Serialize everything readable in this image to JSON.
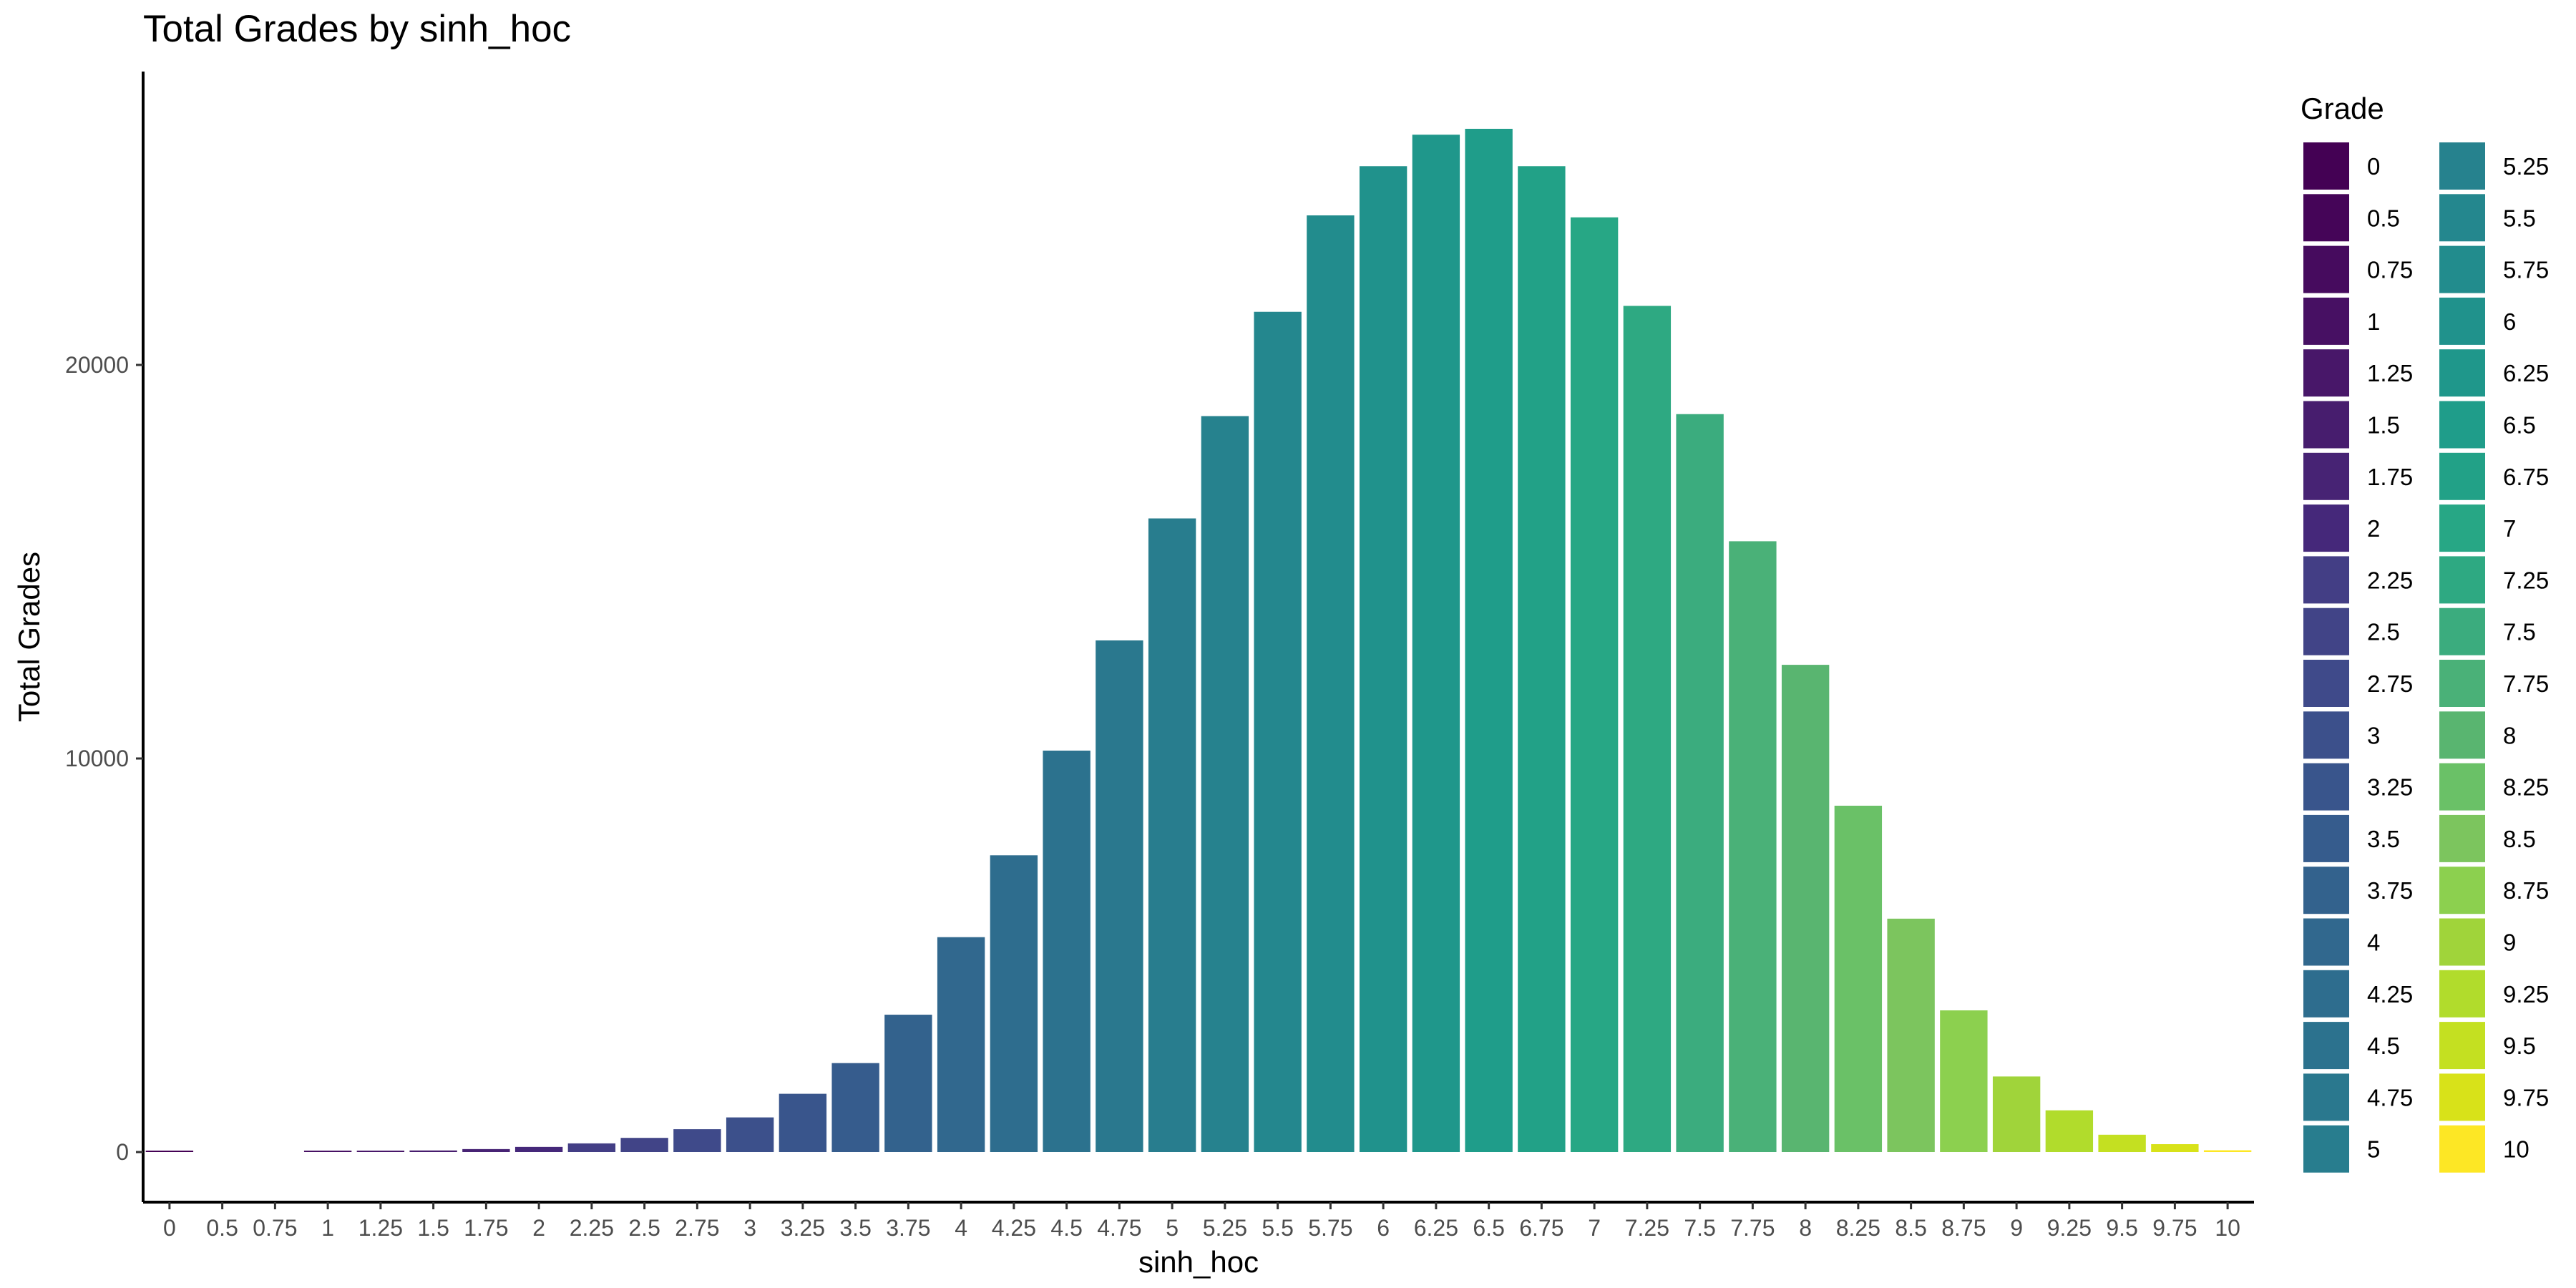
{
  "chart_data": {
    "type": "bar",
    "title": "Total Grades by sinh_hoc",
    "xlabel": "sinh_hoc",
    "ylabel": "Total Grades",
    "ylim": [
      0,
      26000
    ],
    "yticks": [
      0,
      10000,
      20000
    ],
    "y_tick_labels": [
      "0",
      "10000",
      "20000"
    ],
    "grid": false,
    "legend": {
      "title": "Grade",
      "position": "right",
      "columns": 2
    },
    "categories": [
      "0",
      "0.5",
      "0.75",
      "1",
      "1.25",
      "1.5",
      "1.75",
      "2",
      "2.25",
      "2.5",
      "2.75",
      "3",
      "3.25",
      "3.5",
      "3.75",
      "4",
      "4.25",
      "4.5",
      "4.75",
      "5",
      "5.25",
      "5.5",
      "5.75",
      "6",
      "6.25",
      "6.5",
      "6.75",
      "7",
      "7.25",
      "7.5",
      "7.75",
      "8",
      "8.25",
      "8.5",
      "8.75",
      "9",
      "9.25",
      "9.5",
      "9.75",
      "10"
    ],
    "values": [
      20,
      0,
      0,
      15,
      25,
      40,
      75,
      130,
      220,
      360,
      580,
      880,
      1480,
      2260,
      3490,
      5460,
      7540,
      10200,
      13000,
      16100,
      18700,
      21350,
      23800,
      25050,
      25850,
      26000,
      25050,
      23750,
      21500,
      18750,
      15520,
      12380,
      8800,
      5930,
      3600,
      1920,
      1060,
      440,
      200,
      45
    ],
    "colors": [
      "#440154",
      "#450558",
      "#460b5e",
      "#471063",
      "#481769",
      "#471d6e",
      "#472374",
      "#45287a",
      "#433e85",
      "#414487",
      "#3f4a8a",
      "#3c508b",
      "#39558c",
      "#365c8d",
      "#33628d",
      "#31688e",
      "#2e6d8e",
      "#2c728e",
      "#2a788e",
      "#287d8e",
      "#26828e",
      "#24878e",
      "#228c8d",
      "#20928c",
      "#1f978b",
      "#1f9d8a",
      "#22a187",
      "#27a785",
      "#2ea982",
      "#3bac7e",
      "#4ab178",
      "#59b570",
      "#6ac167",
      "#7cc55e",
      "#8cd04f",
      "#a0d43a",
      "#b1dc2c",
      "#c4e021",
      "#d8e219",
      "#fde725"
    ]
  }
}
